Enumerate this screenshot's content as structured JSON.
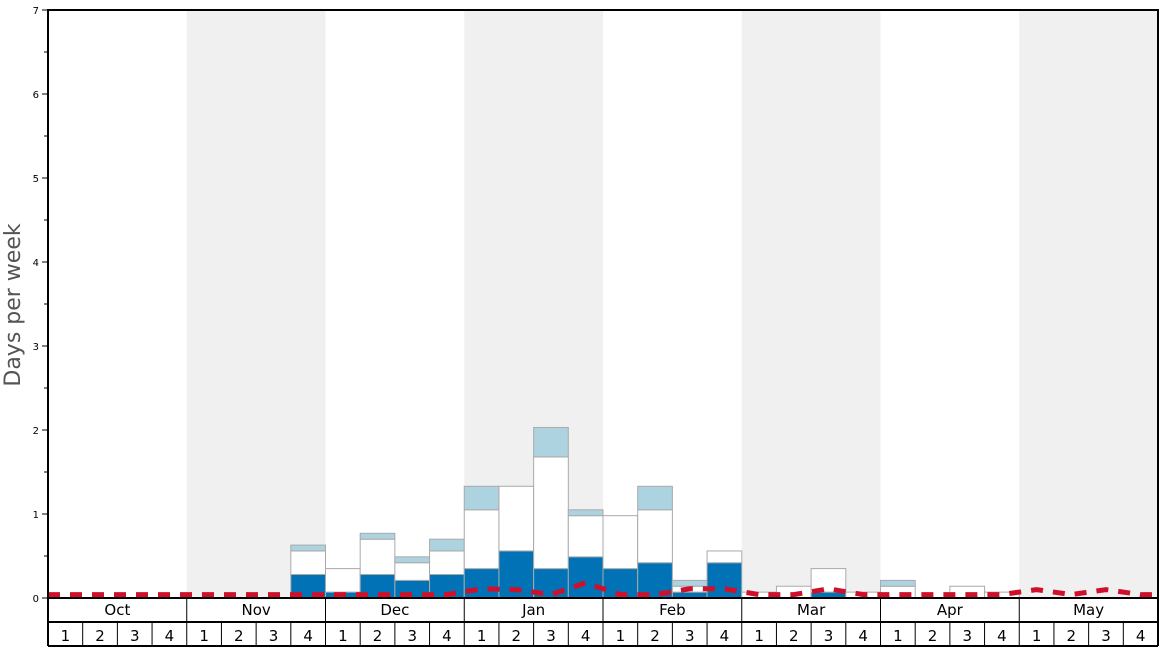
{
  "chart_data": {
    "type": "bar",
    "stacked": true,
    "ylabel": "Days per week",
    "ylim": [
      0,
      7
    ],
    "yticks": [
      "0",
      "1",
      "2",
      "3",
      "4",
      "5",
      "6",
      "7"
    ],
    "months": [
      "Oct",
      "Nov",
      "Dec",
      "Jan",
      "Feb",
      "Mar",
      "Apr",
      "May"
    ],
    "weeks": [
      "1",
      "2",
      "3",
      "4"
    ],
    "shaded_months": [
      "Nov",
      "Jan",
      "Mar",
      "May"
    ],
    "series": [
      {
        "name": "",
        "color": "#0072b5",
        "values": [
          0,
          0,
          0,
          0,
          0,
          0,
          0,
          0.28,
          0.07,
          0.28,
          0.21,
          0.28,
          0.35,
          0.56,
          0.35,
          0.49,
          0.35,
          0.42,
          0.07,
          0.42,
          0,
          0,
          0.07,
          0,
          0,
          0,
          0,
          0,
          0,
          0,
          0,
          0
        ]
      },
      {
        "name": "",
        "color": "#ffffff",
        "values": [
          0,
          0,
          0,
          0,
          0,
          0,
          0,
          0.28,
          0.28,
          0.42,
          0.21,
          0.28,
          0.7,
          0.77,
          1.33,
          0.49,
          0.63,
          0.63,
          0.07,
          0.14,
          0.07,
          0.14,
          0.28,
          0.07,
          0.14,
          0,
          0.14,
          0.07,
          0,
          0,
          0,
          0
        ]
      },
      {
        "name": "",
        "color": "#acd3df",
        "values": [
          0,
          0,
          0,
          0,
          0,
          0,
          0,
          0.07,
          0,
          0.07,
          0.07,
          0.14,
          0.28,
          0,
          0.35,
          0.07,
          0,
          0.28,
          0.07,
          0,
          0,
          0,
          0,
          0,
          0.07,
          0,
          0,
          0,
          0,
          0,
          0,
          0
        ]
      }
    ],
    "average_line": {
      "name": "",
      "color": "#d0102a",
      "values": [
        0.04,
        0.04,
        0.04,
        0.04,
        0.04,
        0.04,
        0.04,
        0.04,
        0.04,
        0.04,
        0.04,
        0.04,
        0.11,
        0.1,
        0.04,
        0.18,
        0.04,
        0.04,
        0.11,
        0.11,
        0.04,
        0.04,
        0.11,
        0.04,
        0.04,
        0.04,
        0.04,
        0.04,
        0.1,
        0.04,
        0.1,
        0.04
      ]
    }
  }
}
